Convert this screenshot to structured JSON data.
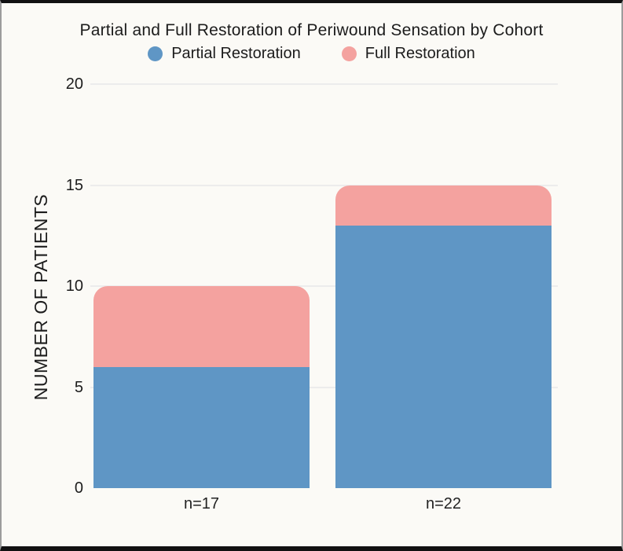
{
  "frame": {
    "background": "#fbfaf6",
    "top_bottom_border_color": "#111111",
    "side_border_color": "#9c9c9c"
  },
  "chart_data": {
    "type": "bar",
    "stacked": true,
    "title": "Partial and Full Restoration of Periwound Sensation by Cohort",
    "categories": [
      "n=17",
      "n=22"
    ],
    "series": [
      {
        "name": "Partial Restoration",
        "color": "#5f96c5",
        "values": [
          6,
          13
        ]
      },
      {
        "name": "Full Restoration",
        "color": "#f4a29f",
        "values": [
          4,
          2
        ]
      }
    ],
    "stack_totals": [
      10,
      15
    ],
    "xlabel": "",
    "ylabel": "NUMBER OF PATIENTS",
    "ylim": [
      0,
      20
    ],
    "yticks": [
      0,
      5,
      10,
      15,
      20
    ],
    "grid": true,
    "gridline_color": "#ececec",
    "text_color": "#1c1c1c",
    "legend_position": "top"
  }
}
